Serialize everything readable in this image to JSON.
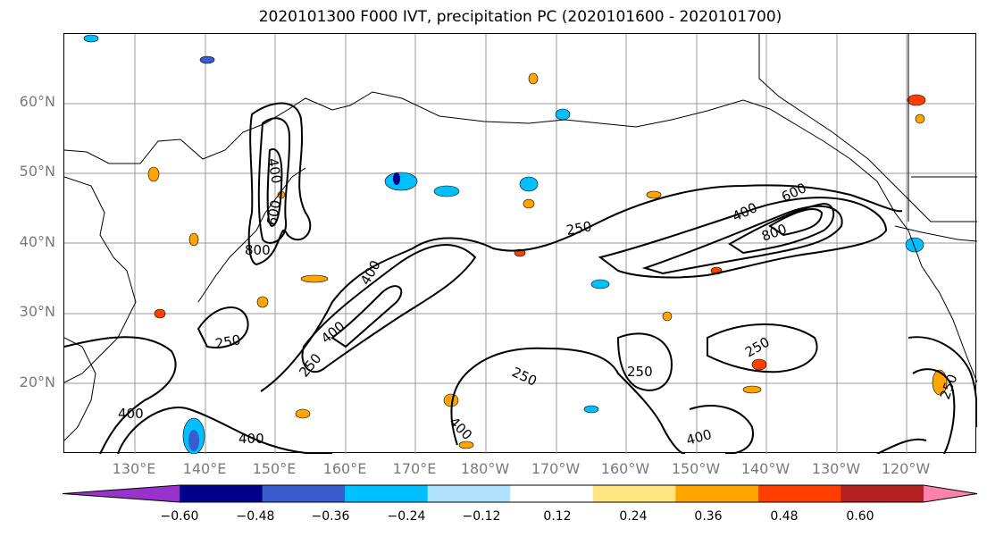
{
  "title": "2020101300 F000 IVT, precipitation PC (2020101600 - 2020101700)",
  "lat_labels": [
    "60°N",
    "50°N",
    "40°N",
    "30°N",
    "20°N"
  ],
  "lon_labels": [
    "130°E",
    "140°E",
    "150°E",
    "160°E",
    "170°E",
    "180°W",
    "170°W",
    "160°W",
    "150°W",
    "140°W",
    "130°W",
    "120°W"
  ],
  "colorbar": {
    "ticks": [
      "−0.60",
      "−0.48",
      "−0.36",
      "−0.24",
      "−0.12",
      "0.12",
      "0.24",
      "0.36",
      "0.48",
      "0.60"
    ],
    "colors": [
      "#9932cc",
      "#00008b",
      "#3a5bcd",
      "#00bfff",
      "#b0e2ff",
      "#ffffff",
      "#ffe680",
      "#ffa500",
      "#ff3f00",
      "#b22222",
      "#ff82ab"
    ]
  },
  "contour_labels": [
    "400",
    "600",
    "800",
    "400",
    "250",
    "400",
    "250",
    "250",
    "400",
    "600",
    "800",
    "250",
    "250",
    "250",
    "400",
    "400",
    "400",
    "400",
    "250",
    "250"
  ]
}
